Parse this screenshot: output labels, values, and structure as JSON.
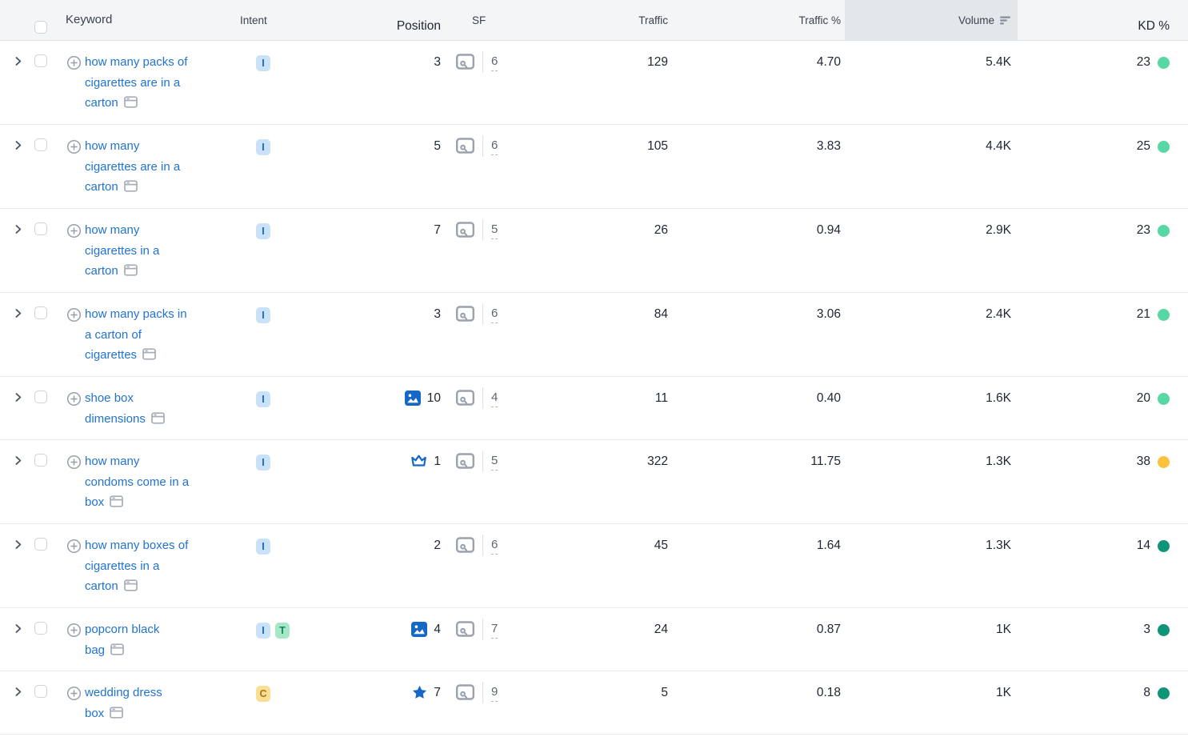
{
  "table": {
    "header": {
      "keyword": "Keyword",
      "intent": "Intent",
      "position": "Position",
      "sf": "SF",
      "traffic": "Traffic",
      "traffic_pct": "Traffic %",
      "volume": "Volume",
      "kd": "KD %",
      "sorted_column": "Volume",
      "sort_direction": "descending"
    },
    "rows": [
      {
        "keyword_lines": [
          "how many packs of",
          "cigarettes are in a",
          "carton"
        ],
        "intents": [
          "I"
        ],
        "position": "3",
        "position_icon": "",
        "sf_count": "6",
        "traffic": "129",
        "traffic_pct": "4.70",
        "volume": "5.4K",
        "kd": "23",
        "kd_level": "easy"
      },
      {
        "keyword_lines": [
          "how many",
          "cigarettes are in a",
          "carton"
        ],
        "intents": [
          "I"
        ],
        "position": "5",
        "position_icon": "",
        "sf_count": "6",
        "traffic": "105",
        "traffic_pct": "3.83",
        "volume": "4.4K",
        "kd": "25",
        "kd_level": "easy"
      },
      {
        "keyword_lines": [
          "how many",
          "cigarettes in a",
          "carton"
        ],
        "intents": [
          "I"
        ],
        "position": "7",
        "position_icon": "",
        "sf_count": "5",
        "traffic": "26",
        "traffic_pct": "0.94",
        "volume": "2.9K",
        "kd": "23",
        "kd_level": "easy"
      },
      {
        "keyword_lines": [
          "how many packs in",
          "a carton of",
          "cigarettes"
        ],
        "intents": [
          "I"
        ],
        "position": "3",
        "position_icon": "",
        "sf_count": "6",
        "traffic": "84",
        "traffic_pct": "3.06",
        "volume": "2.4K",
        "kd": "21",
        "kd_level": "easy"
      },
      {
        "keyword_lines": [
          "shoe box",
          "dimensions"
        ],
        "intents": [
          "I"
        ],
        "position": "10",
        "position_icon": "image",
        "sf_count": "4",
        "traffic": "11",
        "traffic_pct": "0.40",
        "volume": "1.6K",
        "kd": "20",
        "kd_level": "easy"
      },
      {
        "keyword_lines": [
          "how many",
          "condoms come in a",
          "box"
        ],
        "intents": [
          "I"
        ],
        "position": "1",
        "position_icon": "crown",
        "sf_count": "5",
        "traffic": "322",
        "traffic_pct": "11.75",
        "volume": "1.3K",
        "kd": "38",
        "kd_level": "possible"
      },
      {
        "keyword_lines": [
          "how many boxes of",
          "cigarettes in a",
          "carton"
        ],
        "intents": [
          "I"
        ],
        "position": "2",
        "position_icon": "",
        "sf_count": "6",
        "traffic": "45",
        "traffic_pct": "1.64",
        "volume": "1.3K",
        "kd": "14",
        "kd_level": "very_easy"
      },
      {
        "keyword_lines": [
          "popcorn black",
          "bag"
        ],
        "intents": [
          "I",
          "T"
        ],
        "position": "4",
        "position_icon": "image",
        "sf_count": "7",
        "traffic": "24",
        "traffic_pct": "0.87",
        "volume": "1K",
        "kd": "3",
        "kd_level": "very_easy"
      },
      {
        "keyword_lines": [
          "wedding dress",
          "box"
        ],
        "intents": [
          "C"
        ],
        "position": "7",
        "position_icon": "star",
        "sf_count": "9",
        "traffic": "5",
        "traffic_pct": "0.18",
        "volume": "1K",
        "kd": "8",
        "kd_level": "very_easy"
      }
    ]
  },
  "intent_types": {
    "I": {
      "label": "I",
      "bg": "#c9e2f8",
      "fg": "#1b66b5"
    },
    "T": {
      "label": "T",
      "bg": "#a6e8c6",
      "fg": "#0d8a62"
    },
    "C": {
      "label": "C",
      "bg": "#f9df94",
      "fg": "#a7750e"
    }
  },
  "kd_colors": {
    "very_easy": "#0f9477",
    "easy": "#57d7a3",
    "possible": "#fdc23d"
  },
  "accent_colors": {
    "link_blue": "#2173d0",
    "position_icon_blue": "#1668c7",
    "sorted_header_bg": "#e4e7ea",
    "header_bg": "#f3f5f7"
  },
  "icons": {
    "expand": "chevron-right-icon",
    "add_keyword": "plus-circle-icon",
    "keyword_serp": "serp-window-icon",
    "position_image": "image-result-icon",
    "position_crown": "featured-snippet-crown-icon",
    "position_star": "review-star-icon",
    "sf_serp": "serp-snapshot-icon",
    "volume_sort": "sort-descending-icon"
  }
}
